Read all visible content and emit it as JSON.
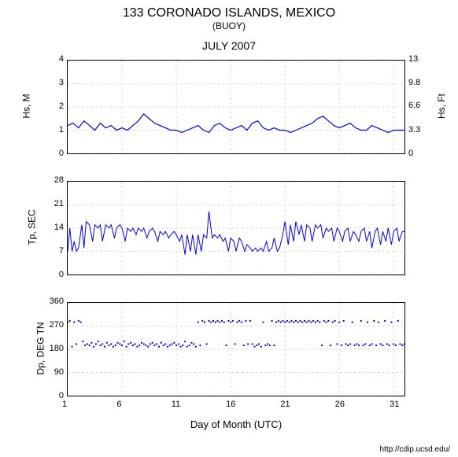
{
  "title": "133 CORONADO ISLANDS, MEXICO",
  "subtitle": "(BUOY)",
  "date_title": "JULY 2007",
  "footer": "http://cdip.ucsd.edu/",
  "xlabel": "Day of Month (UTC)",
  "colors": {
    "line": "#0000ee",
    "grid": "#cccccc",
    "axis": "#000000",
    "bg": "#ffffff"
  },
  "x": {
    "min": 1,
    "max": 32,
    "ticks": [
      1,
      6,
      11,
      16,
      21,
      26,
      31
    ]
  },
  "panels": [
    {
      "id": "hs",
      "type": "line",
      "ylabel_left": "Hs, M",
      "ylabel_right": "Hs, Ft",
      "ylim": [
        0,
        4
      ],
      "yticks": [
        0,
        1,
        2,
        3,
        4
      ],
      "ylim_right": [
        0,
        13
      ],
      "yticks_right": [
        0,
        3.3,
        6.6,
        9.8,
        13
      ],
      "line_width": 1.2,
      "data": [
        [
          1,
          1.2
        ],
        [
          1.5,
          1.3
        ],
        [
          2,
          1.1
        ],
        [
          2.5,
          1.4
        ],
        [
          3,
          1.2
        ],
        [
          3.5,
          1.0
        ],
        [
          4,
          1.3
        ],
        [
          4.5,
          1.1
        ],
        [
          5,
          1.2
        ],
        [
          5.5,
          1.0
        ],
        [
          6,
          1.1
        ],
        [
          6.5,
          1.0
        ],
        [
          7,
          1.2
        ],
        [
          7.5,
          1.4
        ],
        [
          8,
          1.7
        ],
        [
          8.5,
          1.5
        ],
        [
          9,
          1.3
        ],
        [
          9.5,
          1.2
        ],
        [
          10,
          1.1
        ],
        [
          10.5,
          1.0
        ],
        [
          11,
          1.0
        ],
        [
          11.5,
          0.9
        ],
        [
          12,
          1.0
        ],
        [
          12.5,
          1.1
        ],
        [
          13,
          1.2
        ],
        [
          13.5,
          1.0
        ],
        [
          14,
          0.9
        ],
        [
          14.5,
          1.2
        ],
        [
          15,
          1.3
        ],
        [
          15.5,
          1.1
        ],
        [
          16,
          1.0
        ],
        [
          16.5,
          1.1
        ],
        [
          17,
          1.2
        ],
        [
          17.5,
          1.0
        ],
        [
          18,
          1.3
        ],
        [
          18.5,
          1.4
        ],
        [
          19,
          1.1
        ],
        [
          19.5,
          1.0
        ],
        [
          20,
          1.1
        ],
        [
          20.5,
          1.0
        ],
        [
          21,
          1.0
        ],
        [
          21.5,
          0.9
        ],
        [
          22,
          1.0
        ],
        [
          22.5,
          1.1
        ],
        [
          23,
          1.2
        ],
        [
          23.5,
          1.3
        ],
        [
          24,
          1.5
        ],
        [
          24.5,
          1.6
        ],
        [
          25,
          1.4
        ],
        [
          25.5,
          1.2
        ],
        [
          26,
          1.1
        ],
        [
          26.5,
          1.2
        ],
        [
          27,
          1.3
        ],
        [
          27.5,
          1.1
        ],
        [
          28,
          1.0
        ],
        [
          28.5,
          1.0
        ],
        [
          29,
          1.2
        ],
        [
          29.5,
          1.1
        ],
        [
          30,
          1.0
        ],
        [
          30.5,
          0.9
        ],
        [
          31,
          1.0
        ],
        [
          31.5,
          1.0
        ],
        [
          32,
          1.0
        ]
      ]
    },
    {
      "id": "tp",
      "type": "line",
      "ylabel_left": "Tp, SEC",
      "ylim": [
        0,
        28
      ],
      "yticks": [
        0,
        7,
        14,
        21,
        28
      ],
      "line_width": 1.0,
      "data": [
        [
          1,
          7
        ],
        [
          1.2,
          14
        ],
        [
          1.4,
          7
        ],
        [
          1.6,
          10
        ],
        [
          1.8,
          7
        ],
        [
          2,
          8
        ],
        [
          2.3,
          15
        ],
        [
          2.5,
          8
        ],
        [
          2.7,
          16
        ],
        [
          3,
          15
        ],
        [
          3.3,
          10
        ],
        [
          3.5,
          15
        ],
        [
          3.8,
          14
        ],
        [
          4,
          15
        ],
        [
          4.2,
          10
        ],
        [
          4.5,
          15
        ],
        [
          4.8,
          14
        ],
        [
          5,
          15
        ],
        [
          5.3,
          11
        ],
        [
          5.5,
          14
        ],
        [
          5.8,
          15
        ],
        [
          6,
          14
        ],
        [
          6.3,
          10
        ],
        [
          6.5,
          14
        ],
        [
          6.8,
          13
        ],
        [
          7,
          14
        ],
        [
          7.3,
          12
        ],
        [
          7.5,
          14
        ],
        [
          7.8,
          13
        ],
        [
          8,
          14
        ],
        [
          8.3,
          11
        ],
        [
          8.5,
          13
        ],
        [
          8.8,
          14
        ],
        [
          9,
          13
        ],
        [
          9.3,
          10
        ],
        [
          9.5,
          13
        ],
        [
          9.8,
          12
        ],
        [
          10,
          13
        ],
        [
          10.3,
          11
        ],
        [
          10.5,
          12
        ],
        [
          10.8,
          13
        ],
        [
          11,
          12
        ],
        [
          11.3,
          10
        ],
        [
          11.5,
          12
        ],
        [
          11.8,
          6
        ],
        [
          12,
          12
        ],
        [
          12.3,
          7
        ],
        [
          12.5,
          12
        ],
        [
          12.8,
          6
        ],
        [
          13,
          12
        ],
        [
          13.3,
          7
        ],
        [
          13.5,
          12
        ],
        [
          13.8,
          11
        ],
        [
          14,
          19
        ],
        [
          14.3,
          11
        ],
        [
          14.5,
          12
        ],
        [
          14.8,
          11
        ],
        [
          15,
          12
        ],
        [
          15.3,
          10
        ],
        [
          15.5,
          11
        ],
        [
          15.8,
          7
        ],
        [
          16,
          11
        ],
        [
          16.3,
          10
        ],
        [
          16.5,
          7
        ],
        [
          16.8,
          11
        ],
        [
          17,
          10
        ],
        [
          17.3,
          7
        ],
        [
          17.5,
          9
        ],
        [
          17.8,
          8
        ],
        [
          18,
          7
        ],
        [
          18.3,
          8
        ],
        [
          18.5,
          7
        ],
        [
          18.8,
          8
        ],
        [
          19,
          7
        ],
        [
          19.3,
          10
        ],
        [
          19.5,
          7
        ],
        [
          19.8,
          8
        ],
        [
          20,
          11
        ],
        [
          20.3,
          7
        ],
        [
          20.5,
          8
        ],
        [
          20.8,
          12
        ],
        [
          21,
          16
        ],
        [
          21.3,
          9
        ],
        [
          21.5,
          15
        ],
        [
          21.8,
          10
        ],
        [
          22,
          16
        ],
        [
          22.3,
          12
        ],
        [
          22.5,
          15
        ],
        [
          22.8,
          10
        ],
        [
          23,
          15
        ],
        [
          23.3,
          14
        ],
        [
          23.5,
          10
        ],
        [
          23.8,
          15
        ],
        [
          24,
          14
        ],
        [
          24.3,
          15
        ],
        [
          24.5,
          11
        ],
        [
          24.8,
          14
        ],
        [
          25,
          13
        ],
        [
          25.3,
          14
        ],
        [
          25.5,
          10
        ],
        [
          25.8,
          14
        ],
        [
          26,
          13
        ],
        [
          26.3,
          10
        ],
        [
          26.5,
          13
        ],
        [
          26.8,
          14
        ],
        [
          27,
          10
        ],
        [
          27.3,
          13
        ],
        [
          27.5,
          12
        ],
        [
          27.8,
          10
        ],
        [
          28,
          13
        ],
        [
          28.3,
          14
        ],
        [
          28.5,
          10
        ],
        [
          28.8,
          13
        ],
        [
          29,
          8
        ],
        [
          29.3,
          13
        ],
        [
          29.5,
          14
        ],
        [
          29.8,
          9
        ],
        [
          30,
          13
        ],
        [
          30.3,
          10
        ],
        [
          30.5,
          14
        ],
        [
          30.8,
          9
        ],
        [
          31,
          13
        ],
        [
          31.3,
          14
        ],
        [
          31.5,
          10
        ],
        [
          31.8,
          13
        ],
        [
          32,
          13
        ]
      ]
    },
    {
      "id": "dp",
      "type": "scatter",
      "ylabel_left": "Dp, DEG TN",
      "ylim": [
        0,
        360
      ],
      "yticks": [
        0,
        90,
        180,
        270,
        360
      ],
      "marker_size": 2,
      "data": [
        [
          1,
          285
        ],
        [
          1.2,
          290
        ],
        [
          1.4,
          190
        ],
        [
          1.6,
          285
        ],
        [
          1.8,
          200
        ],
        [
          2,
          290
        ],
        [
          2.2,
          285
        ],
        [
          2.4,
          210
        ],
        [
          2.6,
          195
        ],
        [
          2.8,
          200
        ],
        [
          3,
          195
        ],
        [
          3.2,
          205
        ],
        [
          3.4,
          190
        ],
        [
          3.6,
          200
        ],
        [
          3.8,
          210
        ],
        [
          4,
          195
        ],
        [
          4.2,
          200
        ],
        [
          4.4,
          190
        ],
        [
          4.6,
          205
        ],
        [
          4.8,
          195
        ],
        [
          5,
          200
        ],
        [
          5.2,
          190
        ],
        [
          5.4,
          195
        ],
        [
          5.6,
          205
        ],
        [
          5.8,
          200
        ],
        [
          6,
          195
        ],
        [
          6.2,
          210
        ],
        [
          6.4,
          190
        ],
        [
          6.6,
          200
        ],
        [
          6.8,
          205
        ],
        [
          7,
          195
        ],
        [
          7.2,
          200
        ],
        [
          7.4,
          190
        ],
        [
          7.6,
          195
        ],
        [
          7.8,
          205
        ],
        [
          8,
          200
        ],
        [
          8.2,
          195
        ],
        [
          8.4,
          190
        ],
        [
          8.6,
          200
        ],
        [
          8.8,
          205
        ],
        [
          9,
          195
        ],
        [
          9.2,
          200
        ],
        [
          9.4,
          190
        ],
        [
          9.6,
          205
        ],
        [
          9.8,
          195
        ],
        [
          10,
          200
        ],
        [
          10.2,
          190
        ],
        [
          10.4,
          195
        ],
        [
          10.6,
          200
        ],
        [
          10.8,
          205
        ],
        [
          11,
          195
        ],
        [
          11.2,
          200
        ],
        [
          11.4,
          190
        ],
        [
          11.6,
          195
        ],
        [
          11.8,
          210
        ],
        [
          12,
          190
        ],
        [
          12.2,
          195
        ],
        [
          12.4,
          205
        ],
        [
          12.6,
          200
        ],
        [
          12.8,
          190
        ],
        [
          13,
          285
        ],
        [
          13.2,
          195
        ],
        [
          13.4,
          290
        ],
        [
          13.6,
          285
        ],
        [
          13.8,
          200
        ],
        [
          14,
          290
        ],
        [
          14.2,
          285
        ],
        [
          14.4,
          290
        ],
        [
          14.6,
          285
        ],
        [
          14.8,
          290
        ],
        [
          15,
          285
        ],
        [
          15.2,
          290
        ],
        [
          15.4,
          285
        ],
        [
          15.6,
          195
        ],
        [
          15.8,
          290
        ],
        [
          16,
          285
        ],
        [
          16.2,
          290
        ],
        [
          16.4,
          200
        ],
        [
          16.6,
          285
        ],
        [
          16.8,
          290
        ],
        [
          17,
          285
        ],
        [
          17.2,
          195
        ],
        [
          17.4,
          290
        ],
        [
          17.6,
          200
        ],
        [
          17.8,
          290
        ],
        [
          18,
          200
        ],
        [
          18.2,
          190
        ],
        [
          18.4,
          195
        ],
        [
          18.6,
          200
        ],
        [
          18.8,
          190
        ],
        [
          19,
          285
        ],
        [
          19.2,
          195
        ],
        [
          19.4,
          200
        ],
        [
          19.6,
          195
        ],
        [
          19.8,
          290
        ],
        [
          20,
          195
        ],
        [
          20.2,
          285
        ],
        [
          20.4,
          290
        ],
        [
          20.6,
          285
        ],
        [
          20.8,
          290
        ],
        [
          21,
          285
        ],
        [
          21.2,
          290
        ],
        [
          21.4,
          285
        ],
        [
          21.6,
          290
        ],
        [
          21.8,
          285
        ],
        [
          22,
          290
        ],
        [
          22.2,
          285
        ],
        [
          22.4,
          290
        ],
        [
          22.6,
          285
        ],
        [
          22.8,
          290
        ],
        [
          23,
          285
        ],
        [
          23.2,
          290
        ],
        [
          23.4,
          285
        ],
        [
          23.6,
          290
        ],
        [
          23.8,
          285
        ],
        [
          24,
          290
        ],
        [
          24.2,
          285
        ],
        [
          24.4,
          195
        ],
        [
          24.6,
          290
        ],
        [
          24.8,
          285
        ],
        [
          25,
          290
        ],
        [
          25.2,
          195
        ],
        [
          25.4,
          285
        ],
        [
          25.6,
          290
        ],
        [
          25.8,
          200
        ],
        [
          26,
          285
        ],
        [
          26.2,
          195
        ],
        [
          26.4,
          290
        ],
        [
          26.6,
          200
        ],
        [
          26.8,
          195
        ],
        [
          27,
          200
        ],
        [
          27.2,
          285
        ],
        [
          27.4,
          195
        ],
        [
          27.6,
          200
        ],
        [
          27.8,
          195
        ],
        [
          28,
          290
        ],
        [
          28.2,
          195
        ],
        [
          28.4,
          200
        ],
        [
          28.6,
          285
        ],
        [
          28.8,
          195
        ],
        [
          29,
          200
        ],
        [
          29.2,
          290
        ],
        [
          29.4,
          195
        ],
        [
          29.6,
          285
        ],
        [
          29.8,
          200
        ],
        [
          30,
          195
        ],
        [
          30.2,
          290
        ],
        [
          30.4,
          200
        ],
        [
          30.6,
          195
        ],
        [
          30.8,
          285
        ],
        [
          31,
          200
        ],
        [
          31.2,
          195
        ],
        [
          31.4,
          290
        ],
        [
          31.6,
          200
        ],
        [
          31.8,
          195
        ],
        [
          32,
          200
        ]
      ]
    }
  ]
}
